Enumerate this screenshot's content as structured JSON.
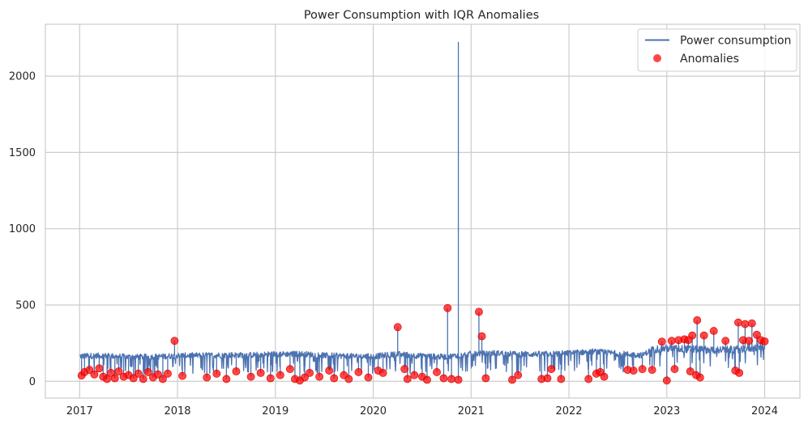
{
  "chart_data": {
    "type": "line",
    "title": "Power Consumption with IQR Anomalies",
    "xlabel": "",
    "ylabel": "",
    "x_ticks": [
      "2017",
      "2018",
      "2019",
      "2020",
      "2021",
      "2022",
      "2023",
      "2024"
    ],
    "y_ticks": [
      0,
      500,
      1000,
      1500,
      2000
    ],
    "xlim": [
      2016.65,
      2024.36
    ],
    "ylim": [
      -110,
      2340
    ],
    "grid": true,
    "legend_position": "top-right",
    "colors": {
      "line": "#4c72b0",
      "anomaly": "#ff0000",
      "grid": "#cccccc",
      "spine": "#cccccc"
    },
    "series": [
      {
        "name": "Power consumption",
        "kind": "line",
        "baseline": [
          [
            2017.0,
            165
          ],
          [
            2017.25,
            168
          ],
          [
            2017.5,
            160
          ],
          [
            2017.75,
            160
          ],
          [
            2018.0,
            168
          ],
          [
            2018.25,
            170
          ],
          [
            2018.5,
            172
          ],
          [
            2018.75,
            172
          ],
          [
            2019.0,
            178
          ],
          [
            2019.25,
            180
          ],
          [
            2019.5,
            170
          ],
          [
            2019.75,
            165
          ],
          [
            2020.0,
            163
          ],
          [
            2020.25,
            178
          ],
          [
            2020.5,
            165
          ],
          [
            2020.75,
            160
          ],
          [
            2021.0,
            180
          ],
          [
            2021.25,
            185
          ],
          [
            2021.5,
            178
          ],
          [
            2021.75,
            178
          ],
          [
            2022.0,
            185
          ],
          [
            2022.25,
            195
          ],
          [
            2022.5,
            182
          ],
          [
            2022.75,
            170
          ],
          [
            2022.85,
            210
          ],
          [
            2023.0,
            215
          ],
          [
            2023.25,
            210
          ],
          [
            2023.5,
            205
          ],
          [
            2023.75,
            210
          ],
          [
            2024.0,
            225
          ]
        ],
        "spikes": [
          [
            2017.97,
            265
          ],
          [
            2020.25,
            355
          ],
          [
            2020.76,
            480
          ],
          [
            2020.87,
            2225
          ],
          [
            2021.08,
            455
          ],
          [
            2021.11,
            295
          ],
          [
            2023.31,
            400
          ],
          [
            2023.48,
            330
          ],
          [
            2023.73,
            385
          ],
          [
            2023.8,
            375
          ],
          [
            2023.87,
            380
          ],
          [
            2023.92,
            305
          ]
        ]
      },
      {
        "name": "Anomalies",
        "kind": "scatter",
        "points": [
          [
            2017.02,
            38
          ],
          [
            2017.05,
            60
          ],
          [
            2017.1,
            75
          ],
          [
            2017.15,
            45
          ],
          [
            2017.2,
            85
          ],
          [
            2017.24,
            30
          ],
          [
            2017.28,
            15
          ],
          [
            2017.32,
            55
          ],
          [
            2017.36,
            20
          ],
          [
            2017.4,
            65
          ],
          [
            2017.45,
            30
          ],
          [
            2017.5,
            40
          ],
          [
            2017.55,
            20
          ],
          [
            2017.6,
            50
          ],
          [
            2017.65,
            15
          ],
          [
            2017.7,
            60
          ],
          [
            2017.75,
            25
          ],
          [
            2017.8,
            45
          ],
          [
            2017.85,
            15
          ],
          [
            2017.9,
            50
          ],
          [
            2017.97,
            265
          ],
          [
            2018.05,
            35
          ],
          [
            2018.3,
            25
          ],
          [
            2018.4,
            50
          ],
          [
            2018.5,
            15
          ],
          [
            2018.6,
            65
          ],
          [
            2018.75,
            30
          ],
          [
            2018.85,
            55
          ],
          [
            2018.95,
            20
          ],
          [
            2019.05,
            40
          ],
          [
            2019.15,
            80
          ],
          [
            2019.2,
            15
          ],
          [
            2019.25,
            5
          ],
          [
            2019.3,
            25
          ],
          [
            2019.35,
            55
          ],
          [
            2019.45,
            30
          ],
          [
            2019.55,
            70
          ],
          [
            2019.6,
            20
          ],
          [
            2019.7,
            40
          ],
          [
            2019.75,
            15
          ],
          [
            2019.85,
            60
          ],
          [
            2019.95,
            25
          ],
          [
            2020.05,
            70
          ],
          [
            2020.1,
            55
          ],
          [
            2020.25,
            355
          ],
          [
            2020.32,
            80
          ],
          [
            2020.35,
            15
          ],
          [
            2020.42,
            40
          ],
          [
            2020.5,
            30
          ],
          [
            2020.55,
            10
          ],
          [
            2020.65,
            60
          ],
          [
            2020.72,
            20
          ],
          [
            2020.76,
            480
          ],
          [
            2020.8,
            15
          ],
          [
            2020.87,
            10
          ],
          [
            2021.08,
            455
          ],
          [
            2021.11,
            295
          ],
          [
            2021.15,
            20
          ],
          [
            2021.42,
            10
          ],
          [
            2021.48,
            40
          ],
          [
            2021.72,
            15
          ],
          [
            2021.78,
            20
          ],
          [
            2021.82,
            80
          ],
          [
            2021.92,
            15
          ],
          [
            2022.2,
            15
          ],
          [
            2022.28,
            50
          ],
          [
            2022.32,
            60
          ],
          [
            2022.36,
            30
          ],
          [
            2022.6,
            75
          ],
          [
            2022.66,
            70
          ],
          [
            2022.75,
            80
          ],
          [
            2022.85,
            75
          ],
          [
            2022.95,
            260
          ],
          [
            2023.0,
            5
          ],
          [
            2023.05,
            265
          ],
          [
            2023.08,
            80
          ],
          [
            2023.12,
            270
          ],
          [
            2023.18,
            275
          ],
          [
            2023.22,
            270
          ],
          [
            2023.24,
            65
          ],
          [
            2023.26,
            300
          ],
          [
            2023.3,
            40
          ],
          [
            2023.31,
            400
          ],
          [
            2023.34,
            25
          ],
          [
            2023.38,
            300
          ],
          [
            2023.48,
            330
          ],
          [
            2023.6,
            265
          ],
          [
            2023.7,
            70
          ],
          [
            2023.73,
            385
          ],
          [
            2023.74,
            55
          ],
          [
            2023.78,
            270
          ],
          [
            2023.8,
            375
          ],
          [
            2023.84,
            265
          ],
          [
            2023.87,
            380
          ],
          [
            2023.92,
            305
          ],
          [
            2023.96,
            270
          ],
          [
            2024.0,
            262
          ]
        ]
      }
    ]
  }
}
